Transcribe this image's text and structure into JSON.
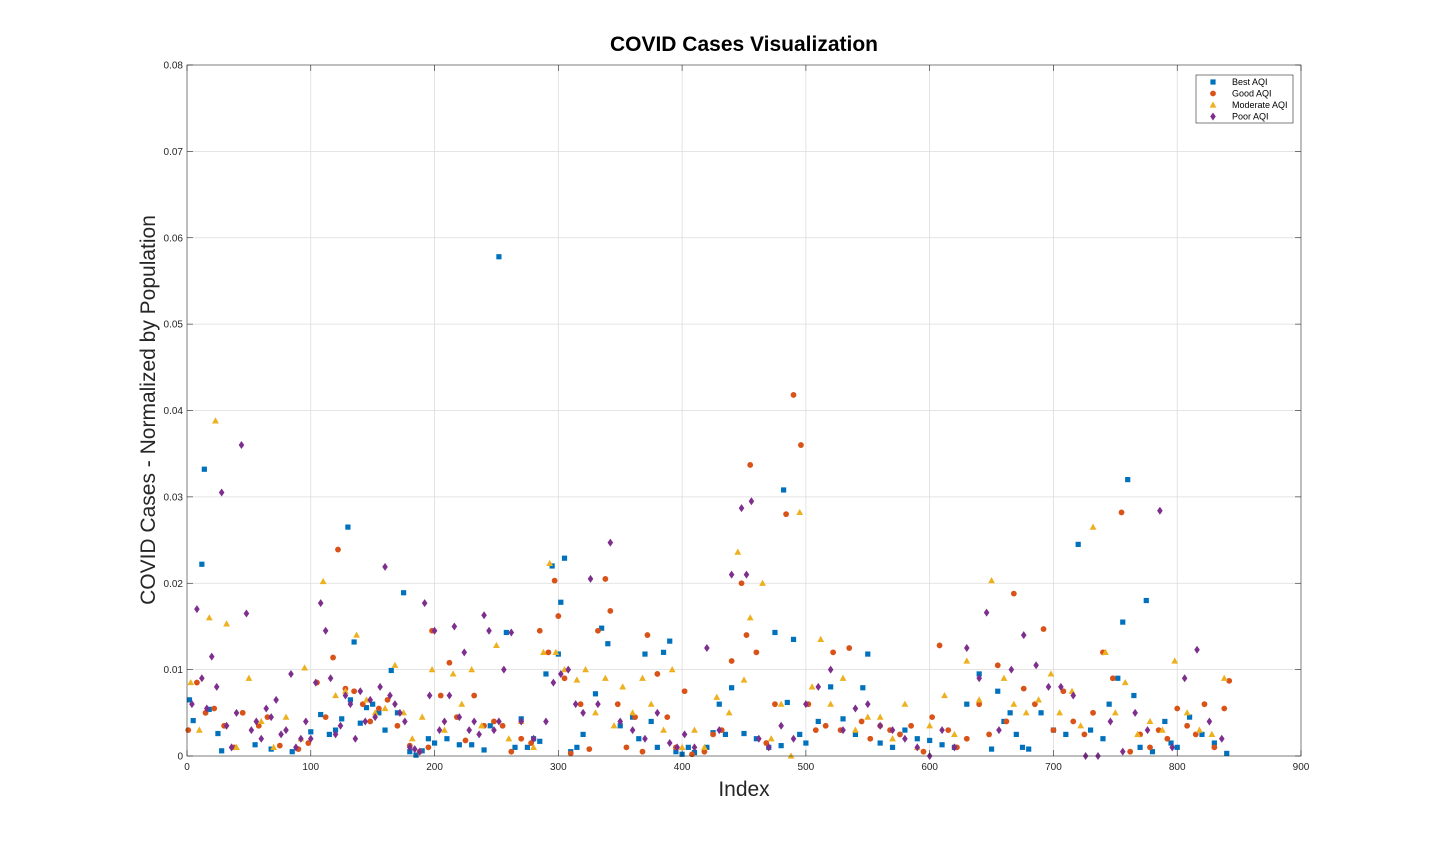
{
  "chart_data": {
    "type": "scatter",
    "title": "COVID Cases Visualization",
    "xlabel": "Index",
    "ylabel": "COVID Cases - Normalized by Population",
    "xlim": [
      0,
      900
    ],
    "ylim": [
      0,
      0.08
    ],
    "x_ticks": [
      "0",
      "100",
      "200",
      "300",
      "400",
      "500",
      "600",
      "700",
      "800",
      "900"
    ],
    "y_ticks": [
      "0",
      "0.01",
      "0.02",
      "0.03",
      "0.04",
      "0.05",
      "0.06",
      "0.07",
      "0.08"
    ],
    "grid": true,
    "legend_position": "top-right",
    "series": [
      {
        "name": "Best AQI",
        "color": "#0072BD",
        "marker": "square",
        "x": [
          2,
          5,
          12,
          14,
          18,
          25,
          28,
          55,
          68,
          85,
          100,
          108,
          115,
          120,
          125,
          130,
          132,
          135,
          140,
          145,
          150,
          155,
          160,
          165,
          170,
          175,
          180,
          185,
          190,
          195,
          200,
          210,
          220,
          230,
          240,
          245,
          252,
          258,
          265,
          270,
          275,
          280,
          285,
          290,
          295,
          300,
          302,
          305,
          310,
          315,
          320,
          330,
          335,
          340,
          350,
          360,
          365,
          370,
          375,
          380,
          385,
          390,
          395,
          400,
          405,
          410,
          420,
          425,
          430,
          435,
          440,
          450,
          460,
          470,
          475,
          480,
          482,
          485,
          490,
          495,
          500,
          510,
          520,
          530,
          540,
          546,
          550,
          560,
          570,
          580,
          590,
          600,
          610,
          620,
          630,
          640,
          650,
          655,
          660,
          665,
          670,
          675,
          680,
          690,
          700,
          710,
          720,
          730,
          740,
          745,
          752,
          756,
          760,
          765,
          770,
          775,
          780,
          790,
          795,
          800,
          810,
          820,
          830,
          840
        ],
        "values": [
          0.0065,
          0.0041,
          0.0222,
          0.0332,
          0.0054,
          0.0026,
          0.0006,
          0.0013,
          0.0008,
          0.0005,
          0.0028,
          0.0048,
          0.0025,
          0.003,
          0.0043,
          0.0265,
          0.0065,
          0.0132,
          0.0038,
          0.0056,
          0.006,
          0.005,
          0.003,
          0.0099,
          0.005,
          0.0189,
          0.0005,
          0.0001,
          0.0006,
          0.002,
          0.0015,
          0.002,
          0.0013,
          0.0013,
          0.0007,
          0.0035,
          0.0578,
          0.0143,
          0.001,
          0.0043,
          0.001,
          0.002,
          0.0017,
          0.0095,
          0.022,
          0.0118,
          0.0178,
          0.0229,
          0.0005,
          0.001,
          0.0025,
          0.0072,
          0.0148,
          0.013,
          0.0035,
          0.0045,
          0.002,
          0.0118,
          0.004,
          0.001,
          0.012,
          0.0133,
          0.0005,
          0.0002,
          0.001,
          0.0004,
          0.001,
          0.0027,
          0.006,
          0.0025,
          0.0079,
          0.0026,
          0.002,
          0.001,
          0.0143,
          0.0012,
          0.0308,
          0.0062,
          0.0135,
          0.0025,
          0.0015,
          0.004,
          0.008,
          0.0043,
          0.0025,
          0.0079,
          0.0118,
          0.0015,
          0.001,
          0.003,
          0.002,
          0.0018,
          0.0013,
          0.001,
          0.006,
          0.0095,
          0.0008,
          0.0075,
          0.004,
          0.005,
          0.0025,
          0.001,
          0.0008,
          0.005,
          0.003,
          0.0025,
          0.0245,
          0.003,
          0.002,
          0.006,
          0.009,
          0.0155,
          0.032,
          0.007,
          0.001,
          0.018,
          0.0005,
          0.004,
          0.0015,
          0.001,
          0.0045,
          0.0025,
          0.0015,
          0.0003
        ]
      },
      {
        "name": "Good AQI",
        "color": "#D95319",
        "marker": "circle",
        "x": [
          1,
          8,
          15,
          22,
          30,
          38,
          45,
          58,
          65,
          75,
          90,
          98,
          105,
          112,
          118,
          122,
          128,
          135,
          142,
          148,
          155,
          162,
          170,
          180,
          188,
          195,
          198,
          205,
          212,
          218,
          225,
          232,
          240,
          248,
          255,
          262,
          270,
          278,
          285,
          292,
          297,
          300,
          305,
          310,
          318,
          325,
          332,
          338,
          342,
          348,
          355,
          362,
          368,
          372,
          380,
          388,
          395,
          402,
          408,
          418,
          425,
          432,
          440,
          448,
          452,
          455,
          460,
          468,
          475,
          484,
          490,
          496,
          502,
          508,
          516,
          522,
          528,
          535,
          545,
          552,
          560,
          568,
          576,
          585,
          595,
          602,
          608,
          615,
          622,
          630,
          640,
          648,
          655,
          662,
          668,
          676,
          685,
          692,
          700,
          708,
          716,
          725,
          732,
          740,
          748,
          755,
          762,
          770,
          778,
          785,
          792,
          800,
          808,
          815,
          822,
          830,
          838,
          842
        ],
        "values": [
          0.003,
          0.0085,
          0.005,
          0.0055,
          0.0035,
          0.001,
          0.005,
          0.0035,
          0.0045,
          0.0012,
          0.0008,
          0.0015,
          0.0085,
          0.0045,
          0.0114,
          0.0239,
          0.0078,
          0.0075,
          0.006,
          0.004,
          0.0055,
          0.0065,
          0.0035,
          0.0012,
          0.0005,
          0.001,
          0.0145,
          0.007,
          0.0108,
          0.0045,
          0.0018,
          0.007,
          0.0035,
          0.004,
          0.0035,
          0.0005,
          0.002,
          0.0015,
          0.0145,
          0.012,
          0.0203,
          0.0162,
          0.009,
          0.0003,
          0.006,
          0.0008,
          0.0145,
          0.0205,
          0.0168,
          0.006,
          0.001,
          0.0045,
          0.0005,
          0.014,
          0.0095,
          0.0045,
          0.001,
          0.0075,
          0.0002,
          0.0005,
          0.0025,
          0.003,
          0.011,
          0.02,
          0.014,
          0.0337,
          0.012,
          0.0015,
          0.006,
          0.028,
          0.0418,
          0.036,
          0.006,
          0.003,
          0.0035,
          0.012,
          0.003,
          0.0125,
          0.004,
          0.002,
          0.0035,
          0.003,
          0.0025,
          0.0035,
          0.0005,
          0.0045,
          0.0128,
          0.003,
          0.001,
          0.002,
          0.006,
          0.0025,
          0.0105,
          0.004,
          0.0188,
          0.0078,
          0.006,
          0.0147,
          0.003,
          0.0075,
          0.004,
          0.0025,
          0.005,
          0.012,
          0.009,
          0.0282,
          0.0005,
          0.0025,
          0.001,
          0.003,
          0.002,
          0.0055,
          0.0035,
          0.0025,
          0.006,
          0.001,
          0.0055,
          0.0087
        ]
      },
      {
        "name": "Moderate AQI",
        "color": "#EDB120",
        "marker": "triangle",
        "x": [
          3,
          10,
          18,
          23,
          32,
          40,
          50,
          60,
          70,
          80,
          92,
          95,
          110,
          120,
          128,
          137,
          145,
          152,
          160,
          168,
          175,
          182,
          190,
          198,
          208,
          215,
          222,
          230,
          238,
          250,
          260,
          270,
          280,
          288,
          293,
          298,
          305,
          315,
          322,
          330,
          338,
          345,
          352,
          360,
          368,
          375,
          385,
          392,
          400,
          410,
          418,
          428,
          438,
          445,
          450,
          455,
          465,
          472,
          480,
          488,
          495,
          505,
          512,
          520,
          530,
          540,
          550,
          560,
          570,
          580,
          590,
          600,
          612,
          620,
          630,
          640,
          650,
          660,
          668,
          678,
          688,
          698,
          705,
          715,
          722,
          732,
          742,
          750,
          758,
          768,
          778,
          788,
          798,
          808,
          818,
          828,
          838
        ],
        "values": [
          0.0085,
          0.003,
          0.016,
          0.0388,
          0.0153,
          0.001,
          0.009,
          0.004,
          0.001,
          0.0045,
          0.002,
          0.0102,
          0.0202,
          0.007,
          0.0075,
          0.014,
          0.0065,
          0.005,
          0.0055,
          0.0105,
          0.005,
          0.002,
          0.0045,
          0.01,
          0.003,
          0.0095,
          0.006,
          0.01,
          0.0035,
          0.0128,
          0.002,
          0.004,
          0.001,
          0.012,
          0.0223,
          0.012,
          0.01,
          0.0088,
          0.01,
          0.005,
          0.009,
          0.0035,
          0.008,
          0.005,
          0.009,
          0.006,
          0.003,
          0.01,
          0.001,
          0.003,
          0.001,
          0.0068,
          0.005,
          0.0236,
          0.0088,
          0.016,
          0.02,
          0.002,
          0.006,
          0.0,
          0.0282,
          0.008,
          0.0135,
          0.006,
          0.009,
          0.003,
          0.0045,
          0.0045,
          0.002,
          0.006,
          0.001,
          0.0035,
          0.007,
          0.0025,
          0.011,
          0.0065,
          0.0203,
          0.009,
          0.006,
          0.005,
          0.0065,
          0.0095,
          0.005,
          0.0075,
          0.0035,
          0.0265,
          0.012,
          0.005,
          0.0085,
          0.0025,
          0.004,
          0.003,
          0.011,
          0.005,
          0.003,
          0.0025,
          0.009
        ]
      },
      {
        "name": "Poor AQI",
        "color": "#7E2F8E",
        "marker": "diamond",
        "x": [
          4,
          8,
          12,
          16,
          20,
          24,
          28,
          32,
          36,
          40,
          44,
          48,
          52,
          56,
          60,
          64,
          68,
          72,
          76,
          80,
          84,
          88,
          92,
          96,
          100,
          104,
          108,
          112,
          116,
          120,
          124,
          128,
          132,
          136,
          140,
          144,
          148,
          152,
          156,
          160,
          164,
          168,
          172,
          176,
          180,
          184,
          188,
          192,
          196,
          200,
          204,
          208,
          212,
          216,
          220,
          224,
          228,
          232,
          236,
          240,
          244,
          248,
          252,
          256,
          262,
          270,
          280,
          290,
          296,
          302,
          308,
          314,
          320,
          326,
          332,
          342,
          350,
          360,
          370,
          380,
          390,
          396,
          402,
          410,
          420,
          430,
          440,
          448,
          452,
          456,
          462,
          470,
          480,
          490,
          500,
          510,
          520,
          530,
          540,
          550,
          560,
          570,
          580,
          590,
          600,
          610,
          620,
          630,
          640,
          646,
          656,
          666,
          676,
          686,
          696,
          706,
          716,
          726,
          736,
          746,
          756,
          766,
          776,
          786,
          796,
          806,
          816,
          826,
          836
        ],
        "values": [
          0.006,
          0.017,
          0.009,
          0.0055,
          0.0115,
          0.008,
          0.0305,
          0.0035,
          0.001,
          0.005,
          0.036,
          0.0165,
          0.003,
          0.004,
          0.002,
          0.0055,
          0.0045,
          0.0065,
          0.0025,
          0.003,
          0.0095,
          0.001,
          0.002,
          0.004,
          0.002,
          0.0085,
          0.0177,
          0.0145,
          0.009,
          0.0025,
          0.0035,
          0.007,
          0.006,
          0.002,
          0.0075,
          0.004,
          0.0065,
          0.0045,
          0.008,
          0.0219,
          0.007,
          0.006,
          0.005,
          0.004,
          0.001,
          0.0008,
          0.0005,
          0.0177,
          0.007,
          0.0145,
          0.003,
          0.004,
          0.007,
          0.015,
          0.0045,
          0.012,
          0.003,
          0.004,
          0.0025,
          0.0163,
          0.0145,
          0.003,
          0.004,
          0.01,
          0.0143,
          0.004,
          0.002,
          0.004,
          0.0085,
          0.0095,
          0.01,
          0.006,
          0.005,
          0.0205,
          0.006,
          0.0247,
          0.004,
          0.003,
          0.002,
          0.005,
          0.0015,
          0.001,
          0.0025,
          0.001,
          0.0125,
          0.003,
          0.021,
          0.0287,
          0.021,
          0.0295,
          0.002,
          0.001,
          0.0035,
          0.002,
          0.006,
          0.008,
          0.01,
          0.003,
          0.0055,
          0.006,
          0.0035,
          0.003,
          0.002,
          0.001,
          0.0,
          0.003,
          0.001,
          0.0125,
          0.009,
          0.0166,
          0.003,
          0.01,
          0.014,
          0.0105,
          0.008,
          0.008,
          0.007,
          0.0,
          0.0,
          0.004,
          0.0005,
          0.005,
          0.003,
          0.0284,
          0.001,
          0.009,
          0.0123,
          0.004,
          0.002
        ]
      }
    ]
  }
}
